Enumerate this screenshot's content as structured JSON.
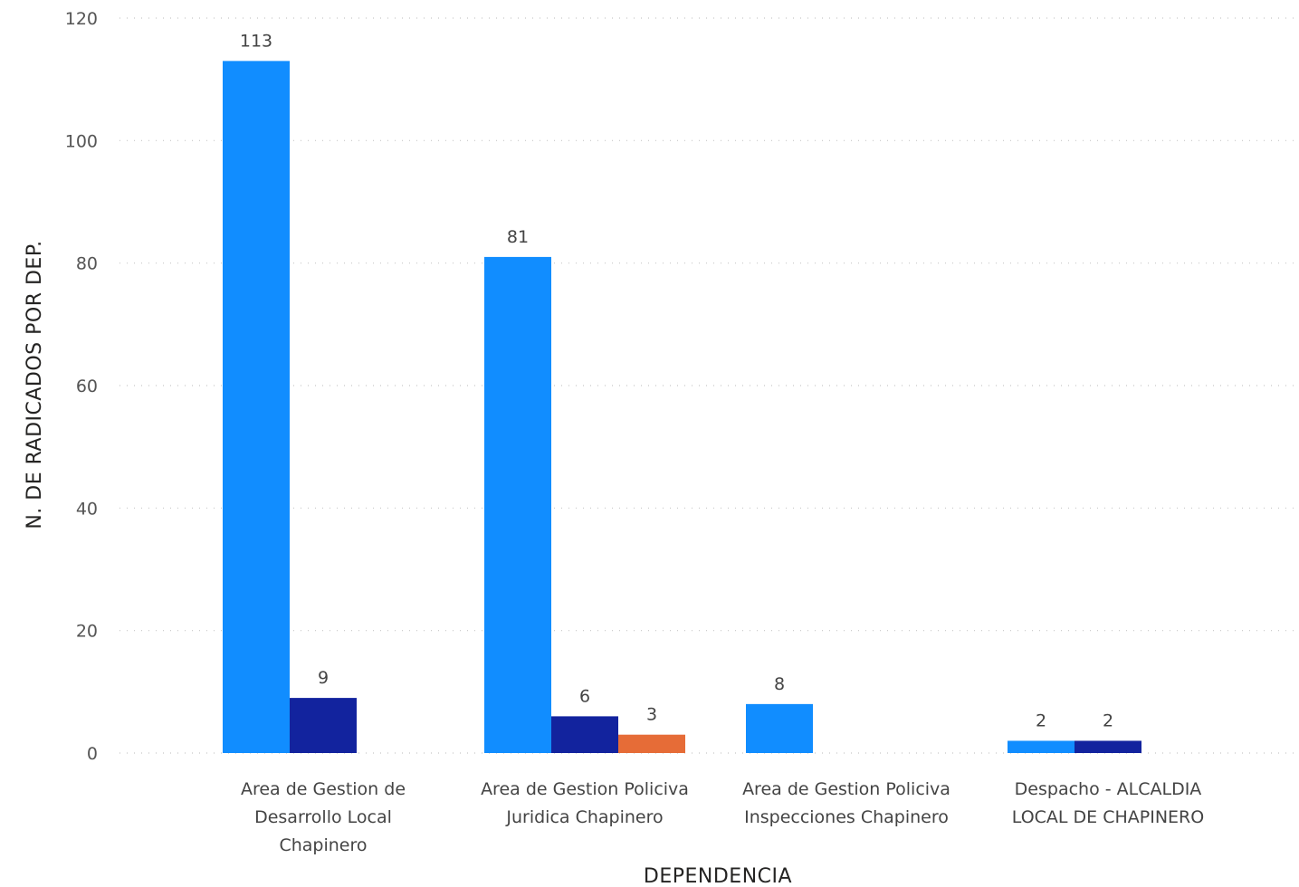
{
  "chart_data": {
    "type": "bar",
    "xlabel": "DEPENDENCIA",
    "ylabel": "N. DE RADICADOS POR DEP.",
    "ylim": [
      0,
      120
    ],
    "yticks": [
      0,
      20,
      40,
      60,
      80,
      100,
      120
    ],
    "grid": true,
    "categories": [
      [
        "Area de Gestion de",
        "Desarrollo Local",
        "Chapinero"
      ],
      [
        "Area de Gestion Policiva",
        "Juridica Chapinero"
      ],
      [
        "Area de Gestion Policiva",
        "Inspecciones Chapinero"
      ],
      [
        "Despacho - ALCALDIA",
        "LOCAL DE CHAPINERO"
      ]
    ],
    "series": [
      {
        "color": "#118DFF",
        "values": [
          113,
          81,
          8,
          2
        ]
      },
      {
        "color": "#12239E",
        "values": [
          9,
          6,
          null,
          2
        ]
      },
      {
        "color": "#E66C37",
        "values": [
          null,
          3,
          null,
          null
        ]
      }
    ]
  }
}
